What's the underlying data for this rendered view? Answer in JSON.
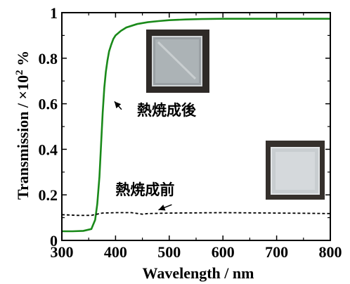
{
  "chart_data": {
    "type": "line",
    "xlabel": "Wavelength / nm",
    "ylabel": "Transmission / ×10",
    "ylabel_sup": "2",
    "ylabel_unit": " %",
    "xlim": [
      300,
      800
    ],
    "ylim": [
      0,
      1.0
    ],
    "x_ticks": [
      300,
      400,
      500,
      600,
      700,
      800
    ],
    "x_tick_labels": [
      "300",
      "400",
      "500",
      "600",
      "700",
      "800"
    ],
    "y_ticks": [
      0,
      0.2,
      0.4,
      0.6,
      0.8,
      1.0
    ],
    "y_tick_labels": [
      "0",
      "0.2",
      "0.4",
      "0.6",
      "0.8",
      "1"
    ],
    "grid": false,
    "legend": "none",
    "series": [
      {
        "color": "#1a8a1a",
        "style": "solid",
        "x": [
          300,
          320,
          340,
          355,
          362,
          366,
          370,
          373,
          376,
          379,
          382,
          385,
          388,
          392,
          396,
          400,
          410,
          420,
          440,
          460,
          480,
          500,
          530,
          560,
          600,
          650,
          700,
          750,
          800
        ],
        "y": [
          0.04,
          0.04,
          0.042,
          0.05,
          0.09,
          0.16,
          0.28,
          0.42,
          0.56,
          0.67,
          0.74,
          0.79,
          0.83,
          0.86,
          0.885,
          0.9,
          0.92,
          0.935,
          0.95,
          0.958,
          0.963,
          0.967,
          0.97,
          0.972,
          0.973,
          0.973,
          0.973,
          0.973,
          0.973
        ]
      },
      {
        "color": "#000000",
        "style": "dashed",
        "x": [
          300,
          330,
          355,
          365,
          375,
          400,
          430,
          450,
          460,
          500,
          550,
          600,
          650,
          700,
          750,
          800
        ],
        "y": [
          0.113,
          0.11,
          0.11,
          0.115,
          0.12,
          0.122,
          0.122,
          0.115,
          0.118,
          0.12,
          0.121,
          0.122,
          0.121,
          0.12,
          0.119,
          0.118
        ]
      }
    ],
    "annotations": [
      {
        "text": "熱焼成後",
        "x": 440,
        "y": 0.55,
        "arrow_to": [
          398,
          0.61
        ]
      },
      {
        "text": "熱焼成前",
        "x": 400,
        "y": 0.2,
        "arrow_to": [
          480,
          0.134
        ]
      }
    ]
  }
}
